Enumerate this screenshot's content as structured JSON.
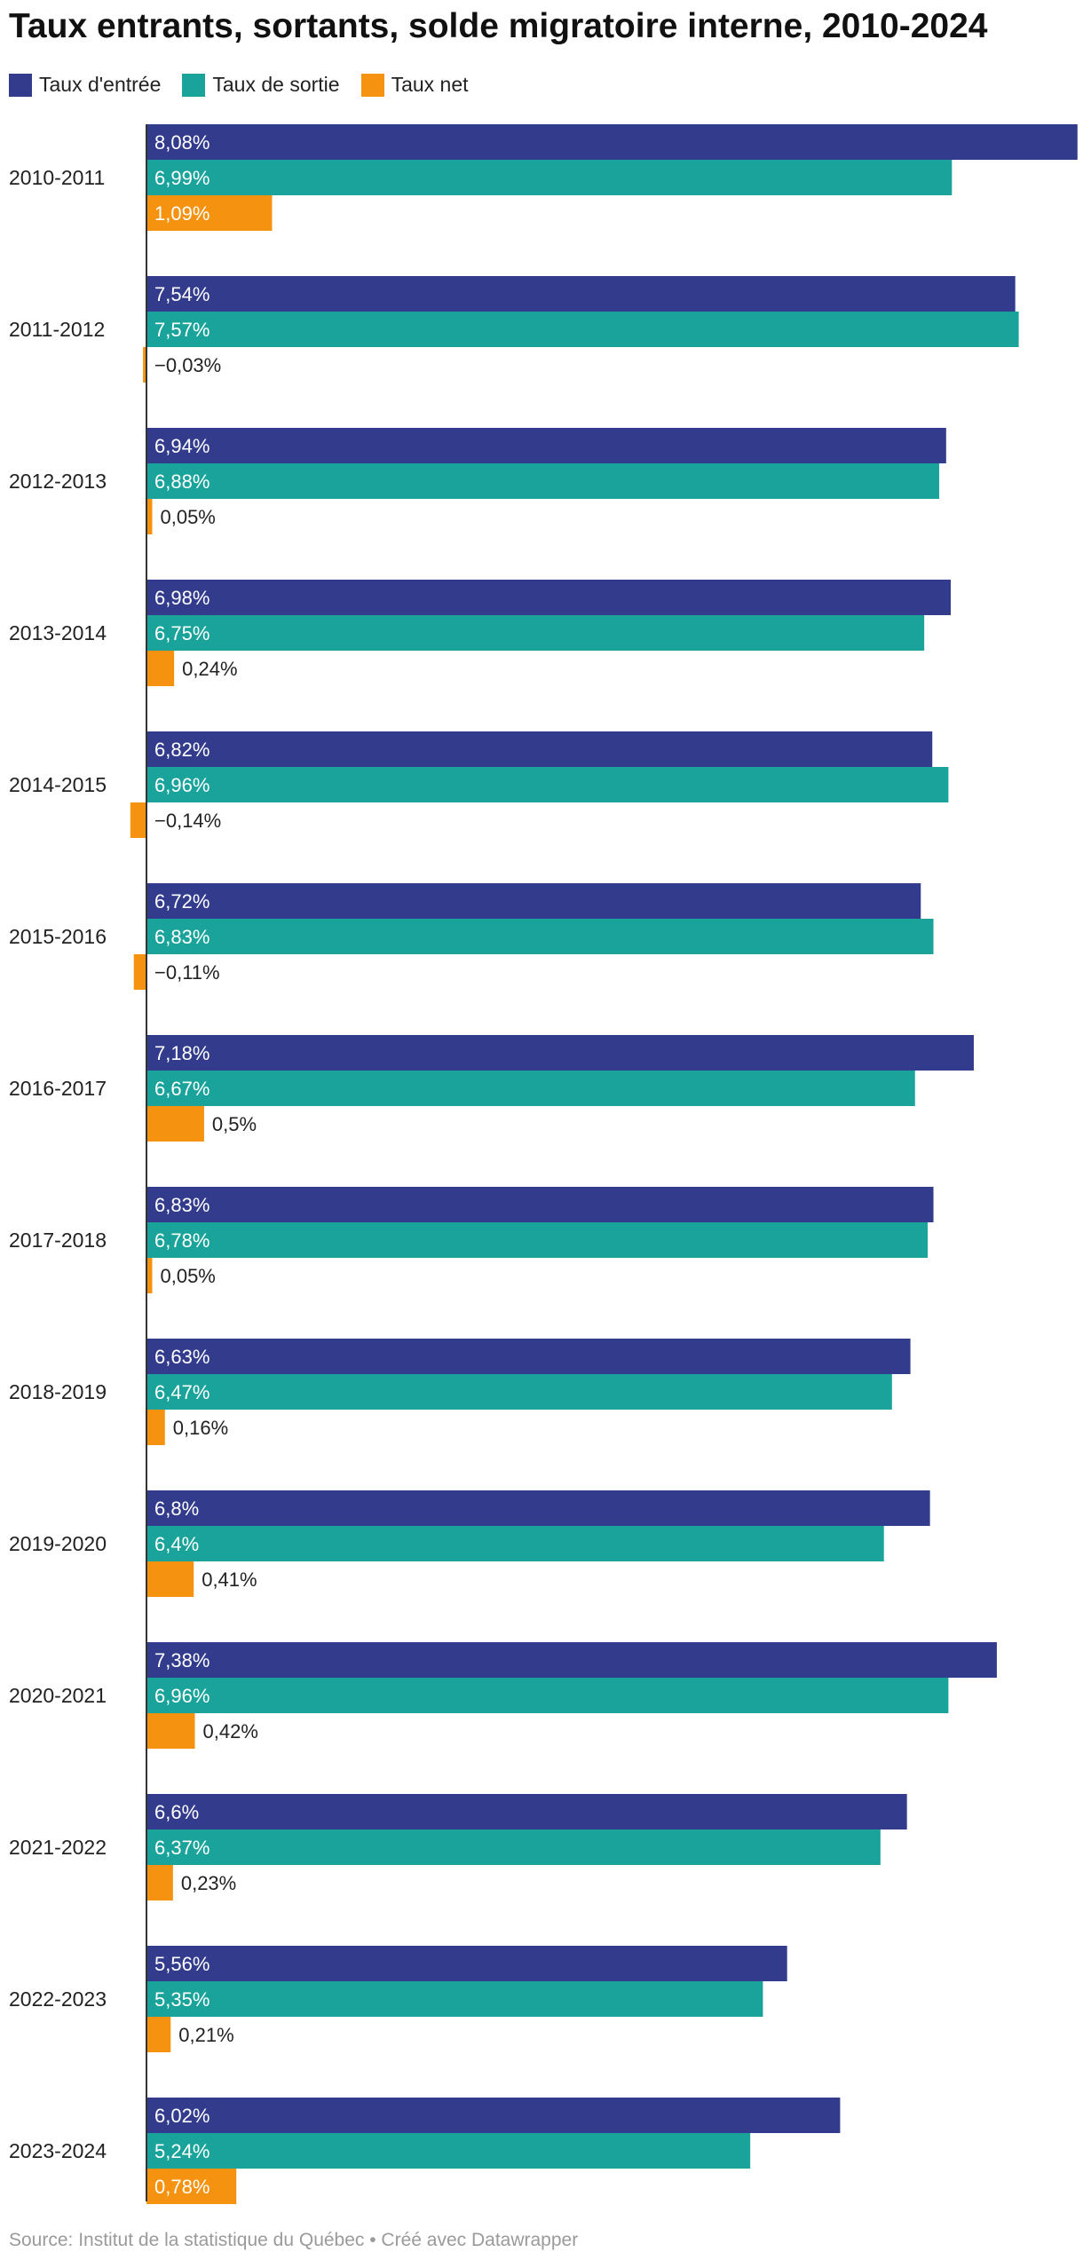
{
  "title": "Taux entrants, sortants, solde migratoire interne, 2010-2024",
  "source": "Source: Institut de la statistique du Québec • Créé avec Datawrapper",
  "colors": {
    "entree": "#323b8c",
    "sortie": "#1aa39a",
    "net": "#f5920f"
  },
  "chart_data": {
    "type": "bar",
    "orientation": "horizontal",
    "categories": [
      "2010-2011",
      "2011-2012",
      "2012-2013",
      "2013-2014",
      "2014-2015",
      "2015-2016",
      "2016-2017",
      "2017-2018",
      "2018-2019",
      "2019-2020",
      "2020-2021",
      "2021-2022",
      "2022-2023",
      "2023-2024"
    ],
    "series": [
      {
        "name": "Taux d'entrée",
        "color": "#323b8c",
        "values": [
          8.08,
          7.54,
          6.94,
          6.98,
          6.82,
          6.72,
          7.18,
          6.83,
          6.63,
          6.8,
          7.38,
          6.6,
          5.56,
          6.02
        ],
        "labels": [
          "8,08%",
          "7,54%",
          "6,94%",
          "6,98%",
          "6,82%",
          "6,72%",
          "7,18%",
          "6,83%",
          "6,63%",
          "6,8%",
          "7,38%",
          "6,6%",
          "5,56%",
          "6,02%"
        ]
      },
      {
        "name": "Taux de sortie",
        "color": "#1aa39a",
        "values": [
          6.99,
          7.57,
          6.88,
          6.75,
          6.96,
          6.83,
          6.67,
          6.78,
          6.47,
          6.4,
          6.96,
          6.37,
          5.35,
          5.24
        ],
        "labels": [
          "6,99%",
          "7,57%",
          "6,88%",
          "6,75%",
          "6,96%",
          "6,83%",
          "6,67%",
          "6,78%",
          "6,47%",
          "6,4%",
          "6,96%",
          "6,37%",
          "5,35%",
          "5,24%"
        ]
      },
      {
        "name": "Taux net",
        "color": "#f5920f",
        "values": [
          1.09,
          -0.03,
          0.05,
          0.24,
          -0.14,
          -0.11,
          0.5,
          0.05,
          0.16,
          0.41,
          0.42,
          0.23,
          0.21,
          0.78
        ],
        "labels": [
          "1,09%",
          "−0,03%",
          "0,05%",
          "0,24%",
          "−0,14%",
          "−0,11%",
          "0,5%",
          "0,05%",
          "0,16%",
          "0,41%",
          "0,42%",
          "0,23%",
          "0,21%",
          "0,78%"
        ]
      }
    ],
    "xlim": [
      -0.14,
      8.08
    ],
    "grid": false,
    "legend": "top-left"
  }
}
